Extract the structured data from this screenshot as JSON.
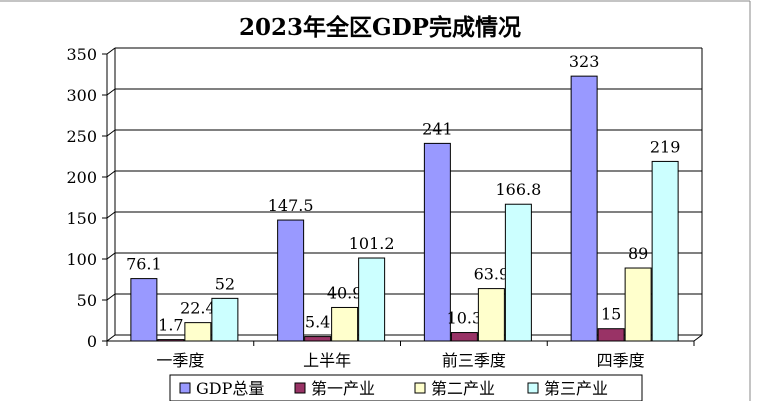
{
  "chart_data": {
    "type": "bar",
    "title": "2023年全区GDP完成情况",
    "categories": [
      "一季度",
      "上半年",
      "前三季度",
      "四季度"
    ],
    "series": [
      {
        "name": "GDP总量",
        "values": [
          76.1,
          147.5,
          241,
          323
        ],
        "labels": [
          "76.1",
          "147.5",
          "241",
          "323"
        ],
        "color": "#9999ff"
      },
      {
        "name": "第一产业",
        "values": [
          1.7,
          5.4,
          10.3,
          15
        ],
        "labels": [
          "1.7",
          "5.4",
          "10.3",
          "15"
        ],
        "color": "#993366"
      },
      {
        "name": "第二产业",
        "values": [
          22.4,
          40.9,
          63.9,
          89
        ],
        "labels": [
          "22.4",
          "40.9",
          "63.9",
          "89"
        ],
        "color": "#ffffcc"
      },
      {
        "name": "第三产业",
        "values": [
          52,
          101.2,
          166.8,
          219
        ],
        "labels": [
          "52",
          "101.2",
          "166.8",
          "219"
        ],
        "color": "#ccffff"
      }
    ],
    "ylim": [
      0,
      350
    ],
    "yticks": [
      0,
      50,
      100,
      150,
      200,
      250,
      300,
      350
    ],
    "grid": true,
    "legend": "bottom",
    "background": "#ffffff",
    "gridline_color": "#000000"
  }
}
